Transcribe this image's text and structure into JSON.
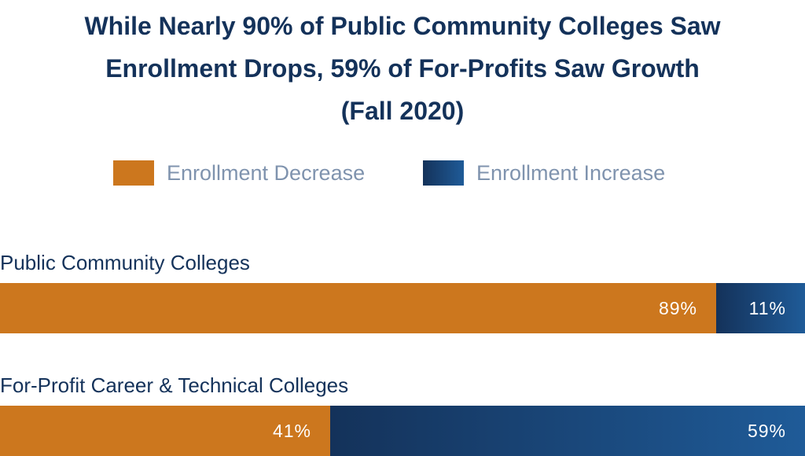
{
  "title_lines": [
    "While Nearly 90% of Public Community Colleges Saw",
    "Enrollment Drops, 59% of For-Profits Saw Growth",
    "(Fall 2020)"
  ],
  "legend": [
    {
      "label": "Enrollment Decrease",
      "color": "#cc771e"
    },
    {
      "label": "Enrollment Increase",
      "color": "#1f5b98"
    }
  ],
  "chart_data": {
    "type": "bar",
    "orientation": "horizontal",
    "stacked": true,
    "normalized_percent": true,
    "title": "While Nearly 90% of Public Community Colleges Saw Enrollment Drops, 59% of For-Profits Saw Growth (Fall 2020)",
    "categories": [
      "Public Community Colleges",
      "For-Profit Career & Technical Colleges"
    ],
    "series": [
      {
        "name": "Enrollment Decrease",
        "values": [
          89,
          41
        ],
        "labels": [
          "89%",
          "41%"
        ],
        "color": "#cc771e"
      },
      {
        "name": "Enrollment Increase",
        "values": [
          11,
          59
        ],
        "labels": [
          "11%",
          "59%"
        ],
        "color": "#1f5b98"
      }
    ],
    "xlim": [
      0,
      100
    ],
    "legend_position": "top",
    "grid": false
  }
}
